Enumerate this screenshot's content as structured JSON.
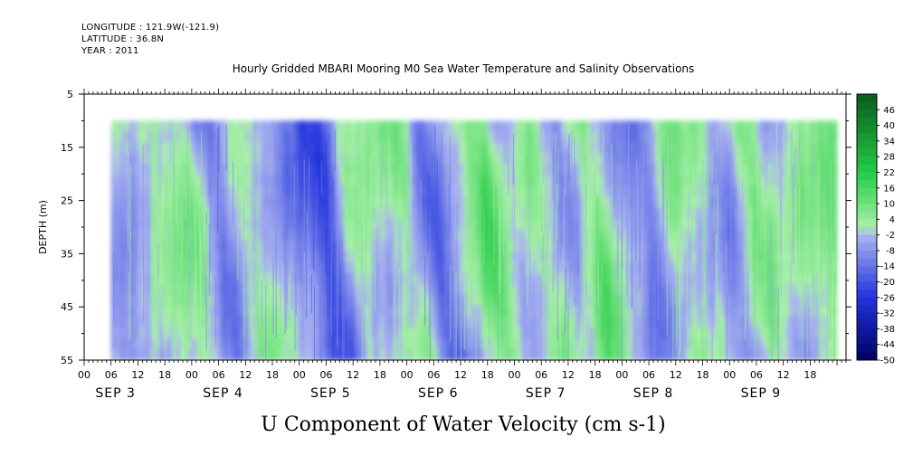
{
  "header": {
    "longitude": "LONGITUDE : 121.9W(-121.9)",
    "latitude": "LATITUDE : 36.8N",
    "year": "YEAR : 2011"
  },
  "chart_data": {
    "type": "heatmap",
    "title": "Hourly Gridded MBARI Mooring M0 Sea Water Temperature and Salinity Observations",
    "xlabel": "U Component of Water Velocity (cm s-1)",
    "ylabel": "DEPTH (m)",
    "y_axis": {
      "ticks": [
        5,
        15,
        25,
        35,
        45,
        55
      ],
      "ylim": [
        5,
        55
      ],
      "inverted": true
    },
    "x_axis": {
      "hour_ticks": [
        "00",
        "06",
        "12",
        "18",
        "00",
        "06",
        "12",
        "18",
        "00",
        "06",
        "12",
        "18",
        "00",
        "06",
        "12",
        "18",
        "00",
        "06",
        "12",
        "18",
        "00",
        "06",
        "12",
        "18",
        "00",
        "06",
        "12",
        "18"
      ],
      "date_labels": [
        "SEP  3",
        "SEP  4",
        "SEP  5",
        "SEP  6",
        "SEP  7",
        "SEP  8",
        "SEP  9"
      ],
      "xlim_hours": [
        0,
        170
      ]
    },
    "data_depth_range_m": [
      10,
      55
    ],
    "data_time_range_hours": [
      6,
      168
    ],
    "colorbar": {
      "labels": [
        "46",
        "40",
        "34",
        "28",
        "22",
        "16",
        "10",
        "4",
        "-2",
        "-8",
        "-14",
        "-20",
        "-26",
        "-32",
        "-38",
        "-44",
        "-50"
      ],
      "range": [
        -50,
        52
      ],
      "step": 3,
      "colors": {
        "deep_negative": "#000066",
        "negative": "#2233dd",
        "near_zero_negative": "#aab4f0",
        "near_zero_positive": "#aaf0aa",
        "positive": "#22cc44",
        "deep_positive": "#0b5a1e"
      }
    },
    "velocity_bands": [
      {
        "hour": 6,
        "u": -6
      },
      {
        "hour": 12,
        "u": -4
      },
      {
        "hour": 18,
        "u": 2
      },
      {
        "hour": 24,
        "u": 4
      },
      {
        "hour": 30,
        "u": -14
      },
      {
        "hour": 36,
        "u": 2
      },
      {
        "hour": 42,
        "u": -4
      },
      {
        "hour": 48,
        "u": -10
      },
      {
        "hour": 54,
        "u": -20
      },
      {
        "hour": 60,
        "u": 4
      },
      {
        "hour": 66,
        "u": 2
      },
      {
        "hour": 72,
        "u": 6
      },
      {
        "hour": 78,
        "u": -18
      },
      {
        "hour": 84,
        "u": -2
      },
      {
        "hour": 90,
        "u": 12
      },
      {
        "hour": 96,
        "u": -6
      },
      {
        "hour": 102,
        "u": 4
      },
      {
        "hour": 108,
        "u": -8
      },
      {
        "hour": 114,
        "u": 10
      },
      {
        "hour": 120,
        "u": -4
      },
      {
        "hour": 126,
        "u": -10
      },
      {
        "hour": 132,
        "u": 6
      },
      {
        "hour": 138,
        "u": 2
      },
      {
        "hour": 144,
        "u": -8
      },
      {
        "hour": 150,
        "u": 8
      },
      {
        "hour": 156,
        "u": -4
      },
      {
        "hour": 162,
        "u": 2
      },
      {
        "hour": 168,
        "u": 6
      }
    ]
  }
}
